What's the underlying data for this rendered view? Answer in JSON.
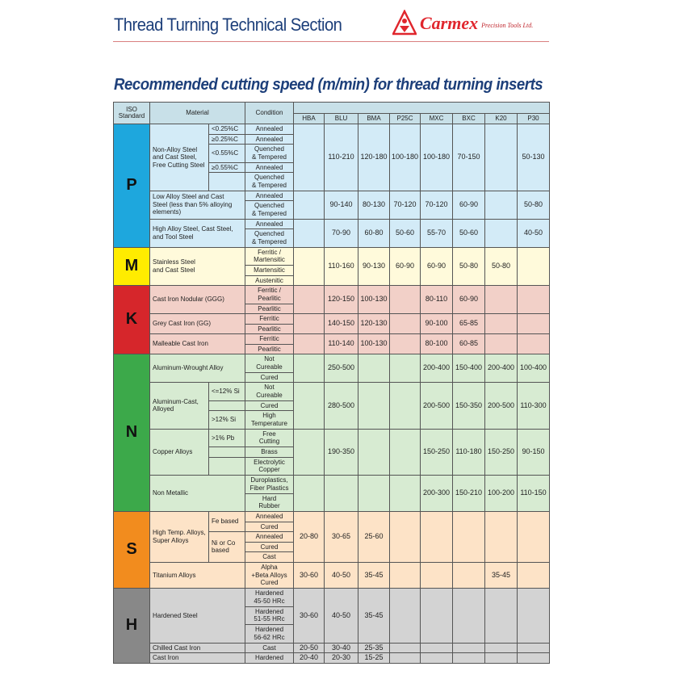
{
  "header": {
    "section_title": "Thread Turning Technical Section",
    "brand": "Carmex",
    "brand_sub": "Precision Tools Ltd.",
    "brand_color": "#e0262d",
    "title_color": "#1d3f7a"
  },
  "title": "Recommended cutting speed (m/min) for thread turning inserts",
  "table": {
    "headers": {
      "iso": "ISO\nStandard",
      "material": "Material",
      "condition": "Condition"
    },
    "grades": [
      "HBA",
      "BLU",
      "BMA",
      "P25C",
      "MXC",
      "BXC",
      "K20",
      "P30"
    ],
    "groups": [
      {
        "iso": "P",
        "color": "#1ea7dd",
        "bg": "#d3ebf7",
        "materials": [
          {
            "name": "Non-Alloy Steel\nand Cast Steel,\nFree Cutting Steel",
            "subs": [
              {
                "label": "<0.25%C",
                "span": 1
              },
              {
                "label": "≥0.25%C",
                "span": 1
              },
              {
                "label": "<0.55%C",
                "span": 1
              },
              {
                "label": "≥0.55%C",
                "span": 1
              },
              {
                "label": "",
                "span": 1
              }
            ],
            "conditions": [
              "Annealed",
              "Annealed",
              "Quenched\n& Tempered",
              "Annealed",
              "Quenched\n& Tempered"
            ],
            "values": [
              "",
              "110-210",
              "120-180",
              "100-180",
              "100-180",
              "70-150",
              "",
              "50-130"
            ]
          },
          {
            "name": "Low Alloy Steel and Cast\nSteel (less than 5% alloying\nelements)",
            "conditions": [
              "Annealed",
              "Quenched\n& Tempered"
            ],
            "values": [
              "",
              "90-140",
              "80-130",
              "70-120",
              "70-120",
              "60-90",
              "",
              "50-80"
            ]
          },
          {
            "name": "High Alloy Steel, Cast Steel,\nand Tool Steel",
            "conditions": [
              "Annealed",
              "Quenched\n& Tempered"
            ],
            "values": [
              "",
              "70-90",
              "60-80",
              "50-60",
              "55-70",
              "50-60",
              "",
              "40-50"
            ]
          }
        ]
      },
      {
        "iso": "M",
        "color": "#ffec00",
        "bg": "#fffadb",
        "materials": [
          {
            "name": "Stainless Steel\nand Cast Steel",
            "conditions": [
              "Ferritic /\nMartensitic",
              "Martensitic",
              "Austenitic"
            ],
            "values": [
              "",
              "110-160",
              "90-130",
              "60-90",
              "60-90",
              "50-80",
              "50-80",
              ""
            ]
          }
        ]
      },
      {
        "iso": "K",
        "color": "#d6262b",
        "bg": "#f2d0c8",
        "materials": [
          {
            "name": "Cast Iron Nodular (GGG)",
            "conditions": [
              "Ferritic /\nPearlitic",
              "Pearlitic"
            ],
            "values": [
              "",
              "120-150",
              "100-130",
              "",
              "80-110",
              "60-90",
              "",
              ""
            ]
          },
          {
            "name": "Grey Cast Iron (GG)",
            "conditions": [
              "Ferritic",
              "Pearlitic"
            ],
            "values": [
              "",
              "140-150",
              "120-130",
              "",
              "90-100",
              "65-85",
              "",
              ""
            ]
          },
          {
            "name": "Malleable Cast Iron",
            "conditions": [
              "Ferritic",
              "Pearlitic"
            ],
            "values": [
              "",
              "110-140",
              "100-130",
              "",
              "80-100",
              "60-85",
              "",
              ""
            ]
          }
        ]
      },
      {
        "iso": "N",
        "color": "#3ca94a",
        "bg": "#d7ebd2",
        "materials": [
          {
            "name": "Aluminum-Wrought Alloy",
            "conditions": [
              "Not\nCureable",
              "Cured"
            ],
            "values": [
              "",
              "250-500",
              "",
              "",
              "200-400",
              "150-400",
              "200-400",
              "100-400"
            ]
          },
          {
            "name": "Aluminum-Cast,\nAlloyed",
            "subs": [
              {
                "label": "<=12% Si",
                "span": 1
              },
              {
                "label": "",
                "span": 1
              },
              {
                "label": ">12% Si",
                "span": 1
              }
            ],
            "conditions": [
              "Not\nCureable",
              "Cured",
              "High\nTemperature"
            ],
            "values": [
              "",
              "280-500",
              "",
              "",
              "200-500",
              "150-350",
              "200-500",
              "110-300"
            ]
          },
          {
            "name": "Copper Alloys",
            "subs": [
              {
                "label": ">1% Pb",
                "span": 1
              },
              {
                "label": "",
                "span": 1
              },
              {
                "label": "",
                "span": 1
              }
            ],
            "conditions": [
              "Free\nCutting",
              "Brass",
              "Electrolytic\nCopper"
            ],
            "values": [
              "",
              "190-350",
              "",
              "",
              "150-250",
              "110-180",
              "150-250",
              "90-150"
            ]
          },
          {
            "name": "Non Metallic",
            "conditions": [
              "Duroplastics,\nFiber Plastics",
              "Hard\nRubber"
            ],
            "values": [
              "",
              "",
              "",
              "",
              "200-300",
              "150-210",
              "100-200",
              "110-150"
            ]
          }
        ]
      },
      {
        "iso": "S",
        "color": "#f28c1e",
        "bg": "#fde3c7",
        "materials": [
          {
            "name": "High Temp. Alloys,\nSuper Alloys",
            "subs": [
              {
                "label": "Fe based",
                "span": 2
              },
              {
                "label": "Ni or Co\nbased",
                "span": 3
              }
            ],
            "conditions": [
              "Annealed",
              "Cured",
              "Annealed",
              "Cured",
              "Cast"
            ],
            "values": [
              "20-80",
              "30-65",
              "25-60",
              "",
              "",
              "",
              "",
              ""
            ]
          },
          {
            "name": "Titanium Alloys",
            "conditions": [
              "Alpha\n+Beta Alloys\nCured"
            ],
            "values": [
              "30-60",
              "40-50",
              "35-45",
              "",
              "",
              "",
              "35-45",
              ""
            ]
          }
        ]
      },
      {
        "iso": "H",
        "color": "#888888",
        "bg": "#d3d3d3",
        "materials": [
          {
            "name": "Hardened Steel",
            "conditions": [
              "Hardened\n45-50 HRc",
              "Hardened\n51-55 HRc",
              "Hardened\n56-62 HRc"
            ],
            "values": [
              "30-60",
              "40-50",
              "35-45",
              "",
              "",
              "",
              "",
              ""
            ]
          },
          {
            "name": "Chilled Cast Iron",
            "conditions": [
              "Cast"
            ],
            "values": [
              "20-50",
              "30-40",
              "25-35",
              "",
              "",
              "",
              "",
              ""
            ]
          },
          {
            "name": "Cast Iron",
            "conditions": [
              "Hardened"
            ],
            "values": [
              "20-40",
              "20-30",
              "15-25",
              "",
              "",
              "",
              "",
              ""
            ]
          }
        ]
      }
    ]
  }
}
